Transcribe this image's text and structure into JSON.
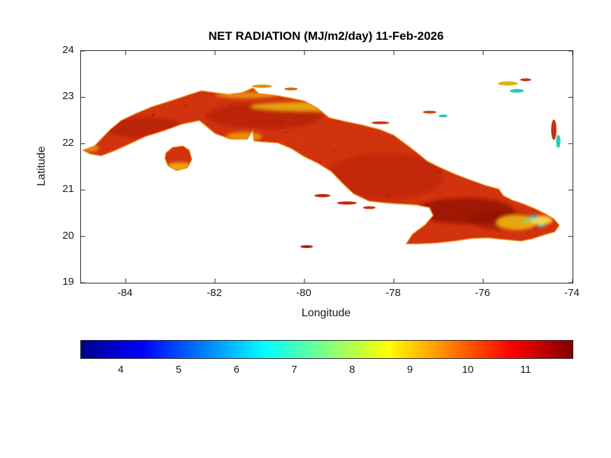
{
  "figure": {
    "background": "#ffffff",
    "axes_border_color": "#262626",
    "text_color": "#1a1a1a"
  },
  "chart_data": {
    "type": "heatmap",
    "title": "NET RADIATION (MJ/m2/day) 11-Feb-2026",
    "xlabel": "Longitude",
    "ylabel": "Latitude",
    "xlim": [
      -85,
      -74
    ],
    "ylim": [
      19,
      24
    ],
    "xticks": [
      -84,
      -82,
      -80,
      -78,
      -76,
      -74
    ],
    "yticks": [
      19,
      20,
      21,
      22,
      23,
      24
    ],
    "grid": false,
    "legend": "none",
    "colorbar": {
      "orientation": "horizontal",
      "position": "below plot",
      "ticks": [
        4,
        5,
        6,
        7,
        8,
        9,
        10,
        11
      ],
      "value_range": [
        3.3,
        11.8
      ],
      "colormap": "jet",
      "gradient_stops": [
        {
          "pos": 0,
          "color": "#00008f"
        },
        {
          "pos": 0.125,
          "color": "#0000ff"
        },
        {
          "pos": 0.375,
          "color": "#00ffff"
        },
        {
          "pos": 0.625,
          "color": "#ffff00"
        },
        {
          "pos": 0.875,
          "color": "#ff0000"
        },
        {
          "pos": 1,
          "color": "#800000"
        }
      ]
    },
    "map": {
      "region": "Cuba",
      "value_summary": "Most of the island 10-11.5 MJ/m2/day (red to dark red); coastal fringes 8-9 (orange); scattered yellow 7-8 patches along the north-central coast and southeast; isolated 5.5-7 cyan/green specks in far eastern Cuba; small cays and nearby islands in red/yellow/cyan",
      "base_color": "#d2330f",
      "coast_color": "#ef8c1a",
      "outlines": {
        "cuba": [
          [
            -84.95,
            21.86
          ],
          [
            -84.7,
            21.95
          ],
          [
            -84.55,
            22.1
          ],
          [
            -84.35,
            22.3
          ],
          [
            -84.1,
            22.5
          ],
          [
            -83.75,
            22.66
          ],
          [
            -83.4,
            22.8
          ],
          [
            -83.0,
            22.92
          ],
          [
            -82.6,
            23.05
          ],
          [
            -82.3,
            23.14
          ],
          [
            -82.0,
            23.1
          ],
          [
            -81.7,
            23.06
          ],
          [
            -81.4,
            23.1
          ],
          [
            -81.15,
            23.2
          ],
          [
            -81.02,
            23.08
          ],
          [
            -80.65,
            23.04
          ],
          [
            -80.3,
            22.98
          ],
          [
            -80.0,
            22.92
          ],
          [
            -79.7,
            22.76
          ],
          [
            -79.45,
            22.56
          ],
          [
            -79.1,
            22.48
          ],
          [
            -78.7,
            22.4
          ],
          [
            -78.3,
            22.3
          ],
          [
            -78.0,
            22.18
          ],
          [
            -77.75,
            22.0
          ],
          [
            -77.5,
            21.82
          ],
          [
            -77.25,
            21.62
          ],
          [
            -77.0,
            21.5
          ],
          [
            -76.65,
            21.35
          ],
          [
            -76.3,
            21.22
          ],
          [
            -75.95,
            21.1
          ],
          [
            -75.65,
            21.02
          ],
          [
            -75.55,
            20.88
          ],
          [
            -75.35,
            20.78
          ],
          [
            -75.1,
            20.7
          ],
          [
            -74.85,
            20.6
          ],
          [
            -74.6,
            20.48
          ],
          [
            -74.42,
            20.38
          ],
          [
            -74.3,
            20.24
          ],
          [
            -74.4,
            20.1
          ],
          [
            -74.65,
            20.03
          ],
          [
            -74.9,
            19.95
          ],
          [
            -75.15,
            19.9
          ],
          [
            -75.5,
            19.93
          ],
          [
            -75.9,
            19.97
          ],
          [
            -76.25,
            19.96
          ],
          [
            -76.65,
            19.9
          ],
          [
            -77.05,
            19.86
          ],
          [
            -77.45,
            19.84
          ],
          [
            -77.72,
            19.84
          ],
          [
            -77.58,
            20.05
          ],
          [
            -77.3,
            20.25
          ],
          [
            -77.12,
            20.45
          ],
          [
            -77.2,
            20.62
          ],
          [
            -77.5,
            20.68
          ],
          [
            -77.85,
            20.7
          ],
          [
            -78.15,
            20.72
          ],
          [
            -78.55,
            20.76
          ],
          [
            -78.9,
            20.92
          ],
          [
            -79.15,
            21.15
          ],
          [
            -79.4,
            21.4
          ],
          [
            -79.7,
            21.58
          ],
          [
            -80.0,
            21.72
          ],
          [
            -80.3,
            21.9
          ],
          [
            -80.6,
            22.02
          ],
          [
            -80.95,
            22.04
          ],
          [
            -81.13,
            22.06
          ],
          [
            -81.16,
            22.28
          ],
          [
            -81.28,
            22.1
          ],
          [
            -81.65,
            22.1
          ],
          [
            -82.0,
            22.22
          ],
          [
            -82.35,
            22.5
          ],
          [
            -82.75,
            22.42
          ],
          [
            -83.15,
            22.28
          ],
          [
            -83.55,
            22.16
          ],
          [
            -83.95,
            21.98
          ],
          [
            -84.3,
            21.83
          ],
          [
            -84.55,
            21.74
          ],
          [
            -84.8,
            21.78
          ]
        ],
        "isla_juventud": [
          [
            -83.1,
            21.8
          ],
          [
            -82.95,
            21.92
          ],
          [
            -82.72,
            21.95
          ],
          [
            -82.58,
            21.86
          ],
          [
            -82.52,
            21.66
          ],
          [
            -82.62,
            21.48
          ],
          [
            -82.86,
            21.42
          ],
          [
            -83.05,
            21.52
          ],
          [
            -83.12,
            21.68
          ]
        ]
      },
      "accents": [
        {
          "lon": -76.4,
          "lat": 20.55,
          "rx": 1.1,
          "ry": 0.28,
          "color": "#8f1000",
          "opacity": 0.75
        },
        {
          "lon": -75.6,
          "lat": 20.35,
          "rx": 0.7,
          "ry": 0.2,
          "color": "#8f1000",
          "opacity": 0.6
        },
        {
          "lon": -80.9,
          "lat": 22.6,
          "rx": 1.3,
          "ry": 0.28,
          "color": "#a51300",
          "opacity": 0.5
        },
        {
          "lon": -83.6,
          "lat": 22.35,
          "rx": 0.9,
          "ry": 0.22,
          "color": "#a51300",
          "opacity": 0.5
        },
        {
          "lon": -78.2,
          "lat": 21.3,
          "rx": 1.3,
          "ry": 0.5,
          "color": "#ab1500",
          "opacity": 0.4
        },
        {
          "lon": -79.8,
          "lat": 22.8,
          "rx": 1.4,
          "ry": 0.1,
          "color": "#f2c00a",
          "opacity": 0.8
        },
        {
          "lon": -81.3,
          "lat": 23.05,
          "rx": 0.7,
          "ry": 0.07,
          "color": "#eda313",
          "opacity": 0.8
        },
        {
          "lon": -84.8,
          "lat": 21.9,
          "rx": 0.2,
          "ry": 0.08,
          "color": "#f0a818",
          "opacity": 0.7
        },
        {
          "lon": -81.35,
          "lat": 22.15,
          "rx": 0.4,
          "ry": 0.1,
          "color": "#f2b705",
          "opacity": 0.7
        },
        {
          "lon": -82.8,
          "lat": 21.5,
          "rx": 0.3,
          "ry": 0.1,
          "color": "#f2c00a",
          "opacity": 0.8
        },
        {
          "lon": -75.25,
          "lat": 20.3,
          "rx": 0.45,
          "ry": 0.16,
          "color": "#f2c00a",
          "opacity": 0.85
        },
        {
          "lon": -74.7,
          "lat": 20.35,
          "rx": 0.25,
          "ry": 0.1,
          "color": "#ffe14d",
          "opacity": 0.9
        },
        {
          "lon": -74.88,
          "lat": 20.4,
          "rx": 0.1,
          "ry": 0.05,
          "color": "#35dfc9",
          "opacity": 0.95
        },
        {
          "lon": -74.7,
          "lat": 20.24,
          "rx": 0.08,
          "ry": 0.04,
          "color": "#35dfc9",
          "opacity": 0.95
        },
        {
          "lon": -75.05,
          "lat": 20.33,
          "rx": 0.07,
          "ry": 0.04,
          "color": "#6fe06a",
          "opacity": 0.9
        }
      ],
      "islets": [
        {
          "lon": -80.95,
          "lat": 23.24,
          "rx": 0.22,
          "ry": 0.035,
          "color": "#e08a10"
        },
        {
          "lon": -80.3,
          "lat": 23.18,
          "rx": 0.15,
          "ry": 0.03,
          "color": "#d06a10"
        },
        {
          "lon": -78.3,
          "lat": 22.45,
          "rx": 0.2,
          "ry": 0.03,
          "color": "#cc3a0e"
        },
        {
          "lon": -77.2,
          "lat": 22.68,
          "rx": 0.15,
          "ry": 0.03,
          "color": "#d04a10"
        },
        {
          "lon": -76.9,
          "lat": 22.6,
          "rx": 0.1,
          "ry": 0.03,
          "color": "#2fc8b8"
        },
        {
          "lon": -79.6,
          "lat": 20.88,
          "rx": 0.18,
          "ry": 0.035,
          "color": "#c22b0c"
        },
        {
          "lon": -79.05,
          "lat": 20.72,
          "rx": 0.22,
          "ry": 0.035,
          "color": "#c22b0c"
        },
        {
          "lon": -78.55,
          "lat": 20.62,
          "rx": 0.14,
          "ry": 0.03,
          "color": "#c8320e"
        },
        {
          "lon": -79.95,
          "lat": 19.78,
          "rx": 0.14,
          "ry": 0.03,
          "color": "#b01e06"
        },
        {
          "lon": -75.45,
          "lat": 23.3,
          "rx": 0.22,
          "ry": 0.045,
          "color": "#e0b010"
        },
        {
          "lon": -75.25,
          "lat": 23.14,
          "rx": 0.16,
          "ry": 0.04,
          "color": "#2fc8b8"
        },
        {
          "lon": -75.05,
          "lat": 23.38,
          "rx": 0.12,
          "ry": 0.03,
          "color": "#d03010"
        },
        {
          "lon": -74.42,
          "lat": 22.3,
          "rx": 0.06,
          "ry": 0.22,
          "color": "#c83010"
        },
        {
          "lon": -74.32,
          "lat": 22.05,
          "rx": 0.05,
          "ry": 0.14,
          "color": "#2fc8b8"
        }
      ],
      "texture": {
        "seed": 7,
        "count": 420,
        "colors": [
          "#8f1000",
          "#8f1000",
          "#a01200",
          "#a01200",
          "#b31a02",
          "#7c0c00",
          "#e2590e"
        ],
        "min_size": 1.5,
        "max_size": 4.5,
        "min_opacity": 0.15,
        "max_opacity": 0.5
      }
    }
  }
}
